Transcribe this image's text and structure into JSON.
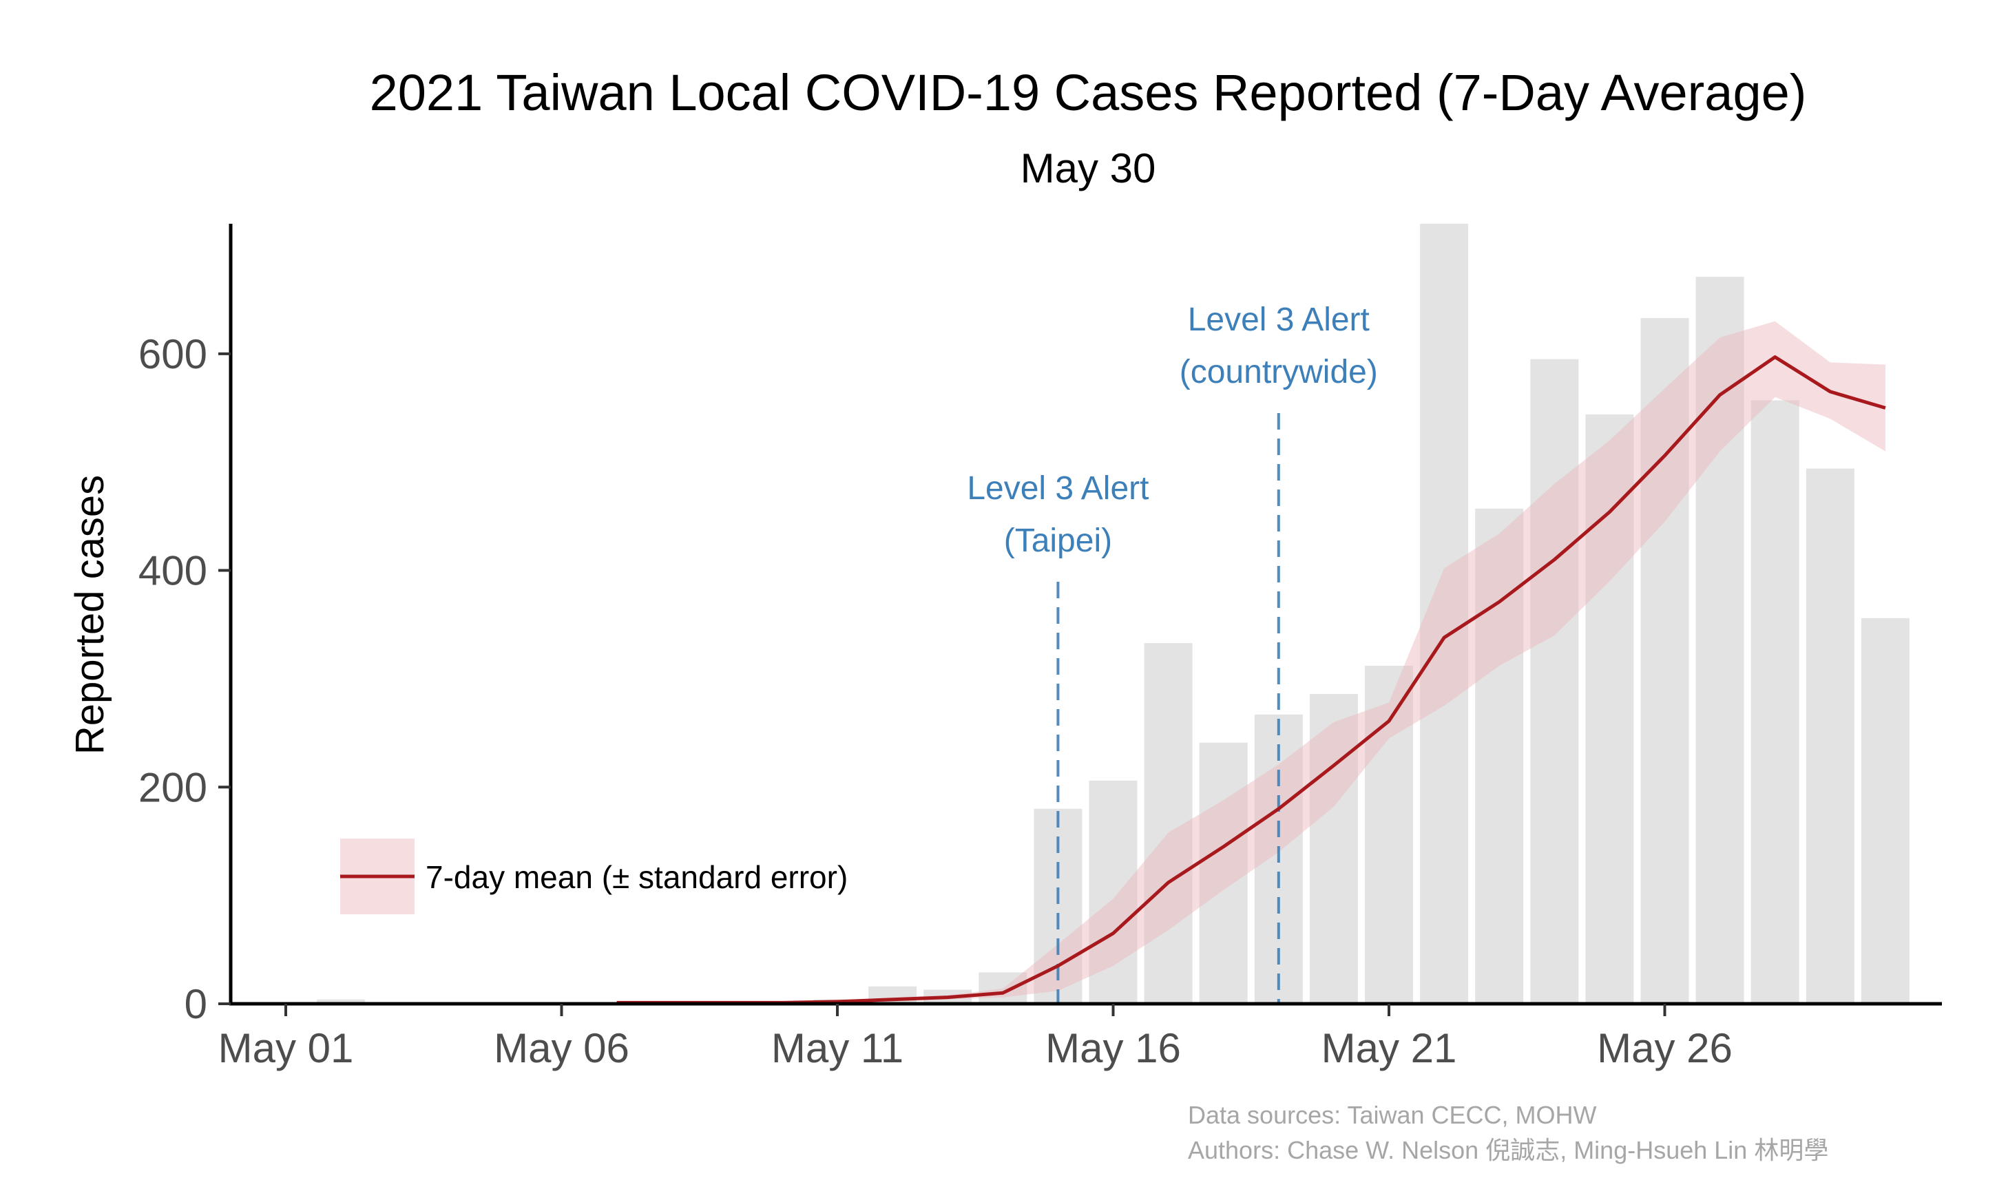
{
  "chart_data": {
    "type": "bar",
    "title": "2021 Taiwan Local COVID-19 Cases Reported (7-Day Average)",
    "subtitle": "May 30",
    "ylabel": "Reported cases",
    "xlabel": "",
    "ylim": [
      0,
      720
    ],
    "yticks": [
      0,
      200,
      400,
      600
    ],
    "ytick_labels": [
      "0",
      "200",
      "400",
      "600"
    ],
    "xticks": [
      "May 01",
      "May 06",
      "May 11",
      "May 16",
      "May 21",
      "May 26"
    ],
    "dates": [
      "May 01",
      "May 02",
      "May 03",
      "May 04",
      "May 05",
      "May 06",
      "May 07",
      "May 08",
      "May 09",
      "May 10",
      "May 11",
      "May 12",
      "May 13",
      "May 14",
      "May 15",
      "May 16",
      "May 17",
      "May 18",
      "May 19",
      "May 20",
      "May 21",
      "May 22",
      "May 23",
      "May 24",
      "May 25",
      "May 26",
      "May 27",
      "May 28",
      "May 29",
      "May 30",
      "May 31"
    ],
    "series": [
      {
        "type": "bar",
        "color": "#e3e3e3",
        "values": [
          0,
          4,
          0,
          0,
          0,
          0,
          0,
          1,
          0,
          0,
          4,
          16,
          13,
          29,
          180,
          206,
          333,
          241,
          267,
          286,
          312,
          723,
          457,
          595,
          544,
          633,
          671,
          557,
          494,
          356,
          null
        ]
      },
      {
        "name": "7-day mean (± standard error)",
        "type": "line",
        "color": "#a8191d",
        "band_color": "#e8b4bb",
        "values": [
          null,
          null,
          null,
          null,
          null,
          null,
          1,
          1,
          1,
          1,
          2,
          4,
          6,
          10,
          35,
          65,
          112,
          145,
          180,
          220,
          261,
          338,
          371,
          410,
          454,
          506,
          562,
          597,
          565,
          550,
          null
        ],
        "lower": [
          null,
          null,
          null,
          null,
          null,
          null,
          0,
          0,
          0,
          0,
          1,
          2,
          4,
          6,
          12,
          35,
          68,
          105,
          140,
          182,
          245,
          275,
          312,
          340,
          390,
          445,
          510,
          560,
          540,
          510,
          null
        ],
        "upper": [
          null,
          null,
          null,
          null,
          null,
          null,
          2,
          2,
          2,
          2,
          3,
          6,
          8,
          14,
          55,
          97,
          158,
          188,
          221,
          260,
          278,
          402,
          434,
          480,
          520,
          568,
          615,
          630,
          592,
          590,
          null
        ]
      }
    ],
    "annotations": [
      {
        "date": "May 15",
        "lines": [
          "Level 3 Alert",
          "(Taipei)"
        ],
        "color": "#3c7fb9"
      },
      {
        "date": "May 19",
        "lines": [
          "Level 3 Alert",
          "(countrywide)"
        ],
        "color": "#3c7fb9"
      }
    ],
    "legend": {
      "position": "bottom-left",
      "label": "7-day mean (± standard error)"
    },
    "caption": {
      "line1": "Data sources: Taiwan CECC, MOHW",
      "line2": "Authors: Chase W. Nelson 倪誠志, Ming-Hsueh Lin 林明學"
    },
    "grid": false
  }
}
